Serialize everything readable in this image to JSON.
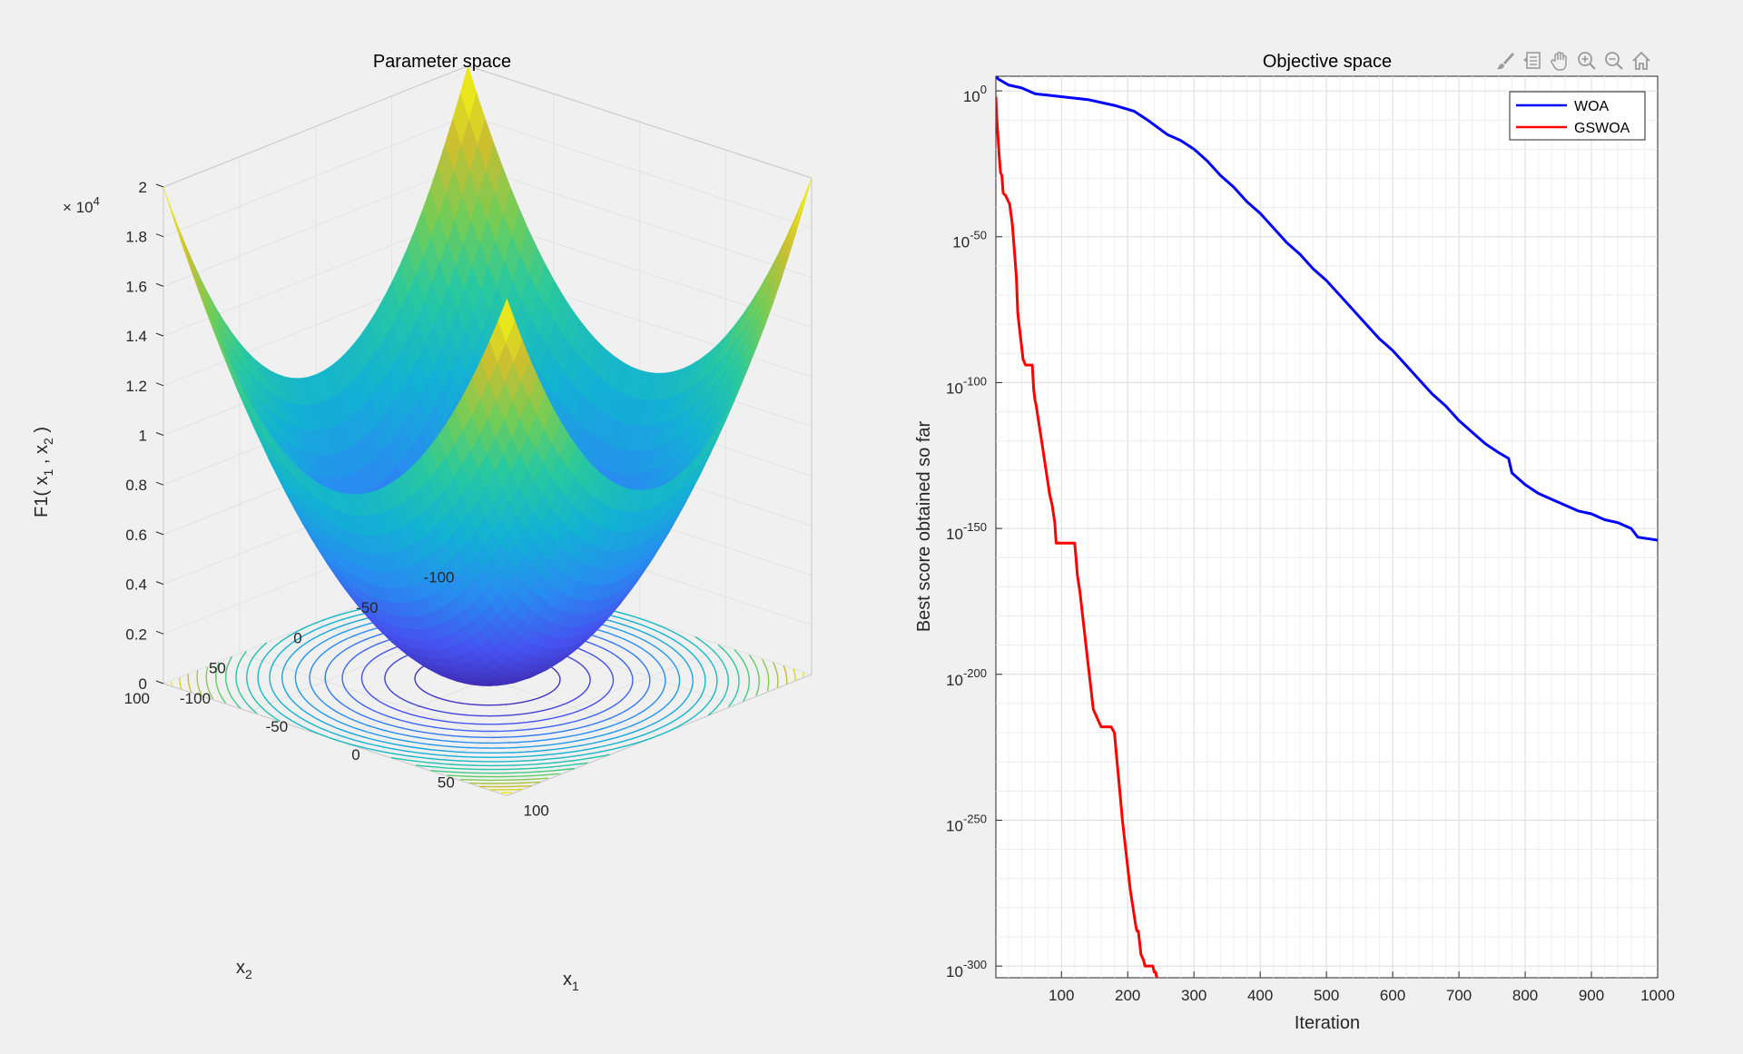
{
  "toolbar": {
    "icons": [
      "brush-icon",
      "data-tips-icon",
      "pan-hand-icon",
      "zoom-in-icon",
      "zoom-out-icon",
      "home-icon"
    ]
  },
  "chart_data": [
    {
      "type": "surface",
      "title": "Parameter space",
      "xlabel": "x",
      "xlabel_sub": "1",
      "ylabel": "x",
      "ylabel_sub": "2",
      "zlabel": "F1( x",
      "zlabel_mid": " , x",
      "zlabel_end": " )",
      "zlabel_sub1": "1",
      "zlabel_sub2": "2",
      "z_exponent_base": "× 10",
      "z_exponent": "4",
      "function": "x1^2 + x2^2",
      "xlim": [
        -100,
        100
      ],
      "ylim": [
        -100,
        100
      ],
      "zlim": [
        0,
        20000
      ],
      "x_ticks": [
        "-100",
        "-50",
        "0",
        "50",
        "100"
      ],
      "y_ticks": [
        "-100",
        "-50",
        "0",
        "50",
        "100"
      ],
      "z_ticks": [
        "0",
        "0.2",
        "0.4",
        "0.6",
        "0.8",
        "1",
        "1.2",
        "1.4",
        "1.6",
        "1.8",
        "2"
      ],
      "colormap": "parula",
      "contour_levels": [
        1000,
        2000,
        3000,
        4000,
        5000,
        6000,
        7000,
        8000,
        9000,
        10000,
        11000,
        12000,
        13000,
        14000,
        15000,
        16000,
        17000,
        18000,
        19000
      ],
      "grid": true
    },
    {
      "type": "line",
      "title": "Objective space",
      "xlabel": "Iteration",
      "ylabel": "Best score obtained so far",
      "yscale": "log",
      "xlim": [
        1,
        1000
      ],
      "ylim_log10": [
        -304,
        5
      ],
      "x_ticks": [
        "100",
        "200",
        "300",
        "400",
        "500",
        "600",
        "700",
        "800",
        "900",
        "1000"
      ],
      "y_ticks": [
        {
          "base": "10",
          "exp": "0",
          "log10": 0
        },
        {
          "base": "10",
          "exp": "-50",
          "log10": -50
        },
        {
          "base": "10",
          "exp": "-100",
          "log10": -100
        },
        {
          "base": "10",
          "exp": "-150",
          "log10": -150
        },
        {
          "base": "10",
          "exp": "-200",
          "log10": -200
        },
        {
          "base": "10",
          "exp": "-250",
          "log10": -250
        },
        {
          "base": "10",
          "exp": "-300",
          "log10": -300
        }
      ],
      "grid": true,
      "legend_position": "top-right",
      "series": [
        {
          "name": "WOA",
          "color": "#0000ff",
          "x": [
            1,
            5,
            20,
            40,
            60,
            80,
            100,
            140,
            180,
            210,
            230,
            260,
            280,
            300,
            320,
            340,
            360,
            380,
            400,
            420,
            440,
            460,
            480,
            500,
            520,
            540,
            560,
            580,
            600,
            620,
            640,
            660,
            680,
            700,
            720,
            740,
            760,
            775,
            780,
            800,
            820,
            840,
            860,
            880,
            900,
            920,
            940,
            960,
            970,
            1000
          ],
          "log10_y": [
            5,
            4,
            2,
            1,
            -1,
            -1.5,
            -2,
            -3,
            -5,
            -7,
            -10,
            -15,
            -17,
            -20,
            -24,
            -29,
            -33,
            -38,
            -42,
            -47,
            -52,
            -56,
            -61,
            -65,
            -70,
            -75,
            -80,
            -85,
            -89,
            -94,
            -99,
            -104,
            -108,
            -113,
            -117,
            -121,
            -124,
            -126,
            -131,
            -135,
            -138,
            -140,
            -142,
            -144,
            -145,
            -147,
            -148,
            -150,
            -153,
            -154
          ]
        },
        {
          "name": "GSWOA",
          "color": "#ff0000",
          "x": [
            1,
            2,
            4,
            6,
            8,
            10,
            12,
            16,
            20,
            22,
            26,
            28,
            30,
            32,
            34,
            36,
            40,
            42,
            46,
            52,
            56,
            58,
            60,
            62,
            66,
            70,
            74,
            78,
            82,
            86,
            90,
            92,
            95,
            98,
            100,
            110,
            120,
            122,
            124,
            128,
            132,
            136,
            140,
            144,
            148,
            152,
            156,
            160,
            165,
            170,
            175,
            180,
            184,
            188,
            192,
            196,
            200,
            204,
            208,
            212,
            214,
            216,
            218,
            220,
            224,
            226,
            230,
            232,
            238,
            240,
            242,
            244,
            246
          ],
          "log10_y": [
            -2,
            -8,
            -15,
            -22,
            -28,
            -29,
            -35,
            -36,
            -38,
            -39,
            -46,
            -52,
            -58,
            -64,
            -76,
            -80,
            -88,
            -92,
            -94,
            -94,
            -94,
            -102,
            -106,
            -108,
            -114,
            -120,
            -126,
            -132,
            -138,
            -142,
            -148,
            -155,
            -155,
            -155,
            -155,
            -155,
            -155,
            -160,
            -166,
            -172,
            -180,
            -188,
            -196,
            -204,
            -212,
            -214,
            -216,
            -218,
            -218,
            -218,
            -218,
            -220,
            -230,
            -240,
            -250,
            -258,
            -266,
            -274,
            -280,
            -286,
            -288,
            -288,
            -292,
            -296,
            -298,
            -300,
            -300,
            -300,
            -300,
            -302,
            -302,
            -304,
            -304
          ]
        }
      ]
    }
  ]
}
